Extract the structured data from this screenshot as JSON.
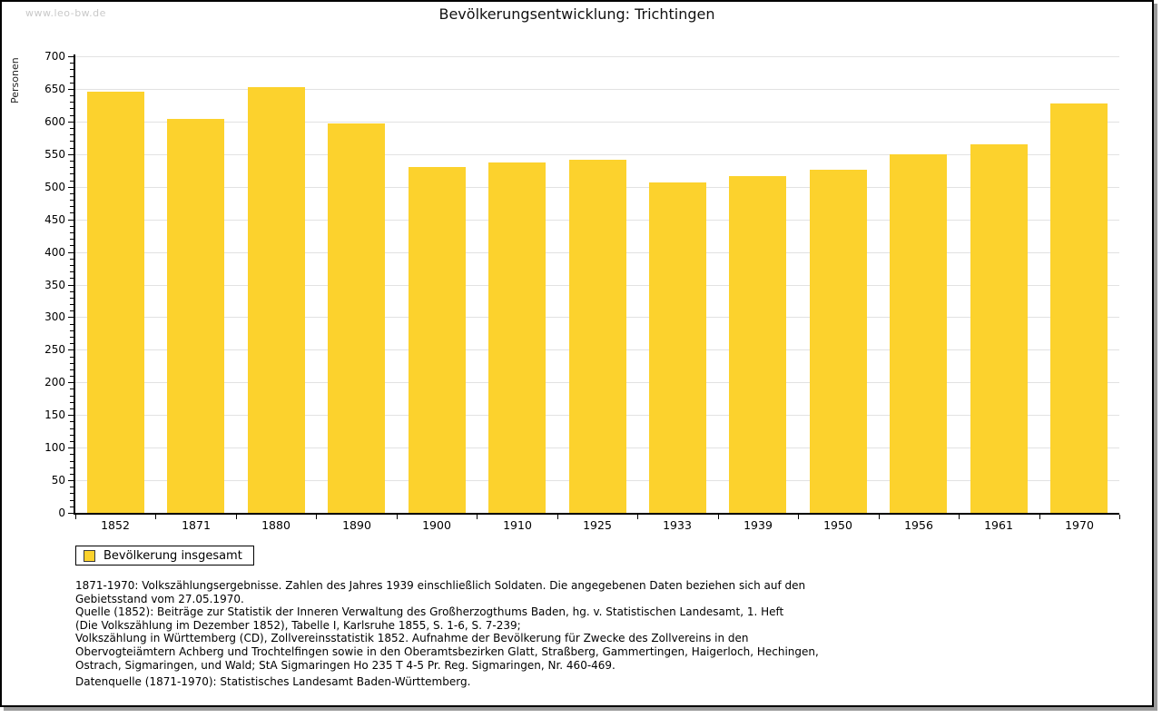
{
  "watermark": "www.leo-bw.de",
  "title": "Bevölkerungsentwicklung: Trichtingen",
  "chart_data": {
    "type": "bar",
    "title": "Bevölkerungsentwicklung: Trichtingen",
    "xlabel": "",
    "ylabel": "Personen",
    "ylim": [
      0,
      700
    ],
    "ytick_step": 50,
    "ytick_minor_step": 10,
    "grid": true,
    "legend_position": "bottom-left",
    "bar_color": "#fcd22d",
    "categories": [
      "1852",
      "1871",
      "1880",
      "1890",
      "1900",
      "1910",
      "1925",
      "1933",
      "1939",
      "1950",
      "1956",
      "1961",
      "1970"
    ],
    "series": [
      {
        "name": "Bevölkerung insgesamt",
        "values": [
          646,
          604,
          653,
          597,
          530,
          537,
          542,
          506,
          516,
          526,
          550,
          565,
          627
        ]
      }
    ]
  },
  "legend": {
    "label": "Bevölkerung insgesamt",
    "swatch_color": "#fcd22d"
  },
  "footnotes": [
    "1871-1970: Volkszählungsergebnisse. Zahlen des Jahres 1939 einschließlich Soldaten. Die angegebenen Daten beziehen sich auf den",
    "Gebietsstand vom 27.05.1970.",
    "Quelle (1852): Beiträge zur Statistik der Inneren Verwaltung des Großherzogthums Baden, hg. v. Statistischen Landesamt, 1. Heft",
    "(Die Volkszählung im Dezember 1852), Tabelle I, Karlsruhe 1855, S. 1-6, S. 7-239;",
    "Volkszählung in Württemberg (CD), Zollvereinsstatistik 1852. Aufnahme der Bevölkerung für Zwecke des Zollvereins in den",
    "Obervogteiämtern Achberg und Trochtelfingen sowie in den Oberamtsbezirken Glatt, Straßberg, Gammertingen, Haigerloch, Hechingen,",
    "Ostrach, Sigmaringen, und Wald; StA Sigmaringen Ho 235 T 4-5 Pr. Reg. Sigmaringen, Nr. 460-469."
  ],
  "datasource": "Datenquelle (1871-1970): Statistisches Landesamt Baden-Württemberg.",
  "colors": {
    "bar": "#fcd22d",
    "gridline": "#e2e2e2",
    "axis": "#000000",
    "watermark": "#c9c9c9",
    "frame_shadow": "#9b9b9b"
  }
}
